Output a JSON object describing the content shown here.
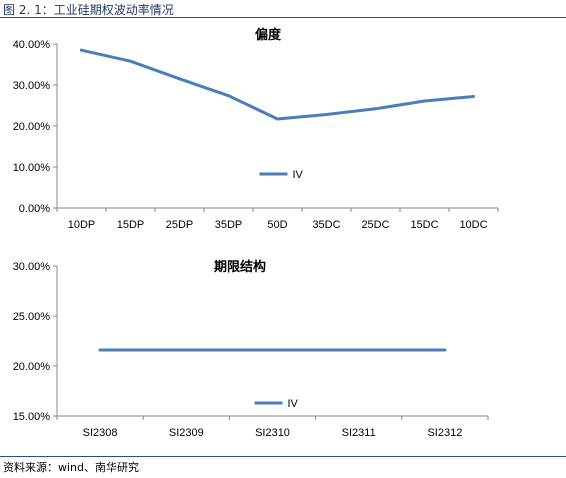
{
  "header": {
    "title": "图 2. 1：工业硅期权波动率情况"
  },
  "footer": {
    "source": "资料来源：wind、南华研究"
  },
  "colors": {
    "line": "#4a7ebb",
    "rule": "#2e4b8f",
    "title": "#1f3864"
  },
  "chart_data": [
    {
      "type": "line",
      "title": "偏度",
      "categories": [
        "10DP",
        "15DP",
        "25DP",
        "35DP",
        "50D",
        "35DC",
        "25DC",
        "15DC",
        "10DC"
      ],
      "series": [
        {
          "name": "IV",
          "values": [
            38.5,
            35.8,
            31.5,
            27.4,
            21.7,
            22.8,
            24.2,
            26.1,
            27.2
          ]
        }
      ],
      "ylim": [
        0,
        40
      ],
      "yticks": [
        "0.00%",
        "10.00%",
        "20.00%",
        "30.00%",
        "40.00%"
      ],
      "ytick_values": [
        0,
        10,
        20,
        30,
        40
      ],
      "legend": "bottom-center",
      "grid": false
    },
    {
      "type": "line",
      "title": "期限结构",
      "categories": [
        "SI2308",
        "SI2309",
        "SI2310",
        "SI2311",
        "SI2312"
      ],
      "series": [
        {
          "name": "IV",
          "values": [
            21.6,
            21.6,
            21.6,
            21.6,
            21.6
          ]
        }
      ],
      "ylim": [
        15,
        30
      ],
      "yticks": [
        "15.00%",
        "20.00%",
        "25.00%",
        "30.00%"
      ],
      "ytick_values": [
        15,
        20,
        25,
        30
      ],
      "legend": "bottom-center",
      "grid": false
    }
  ]
}
